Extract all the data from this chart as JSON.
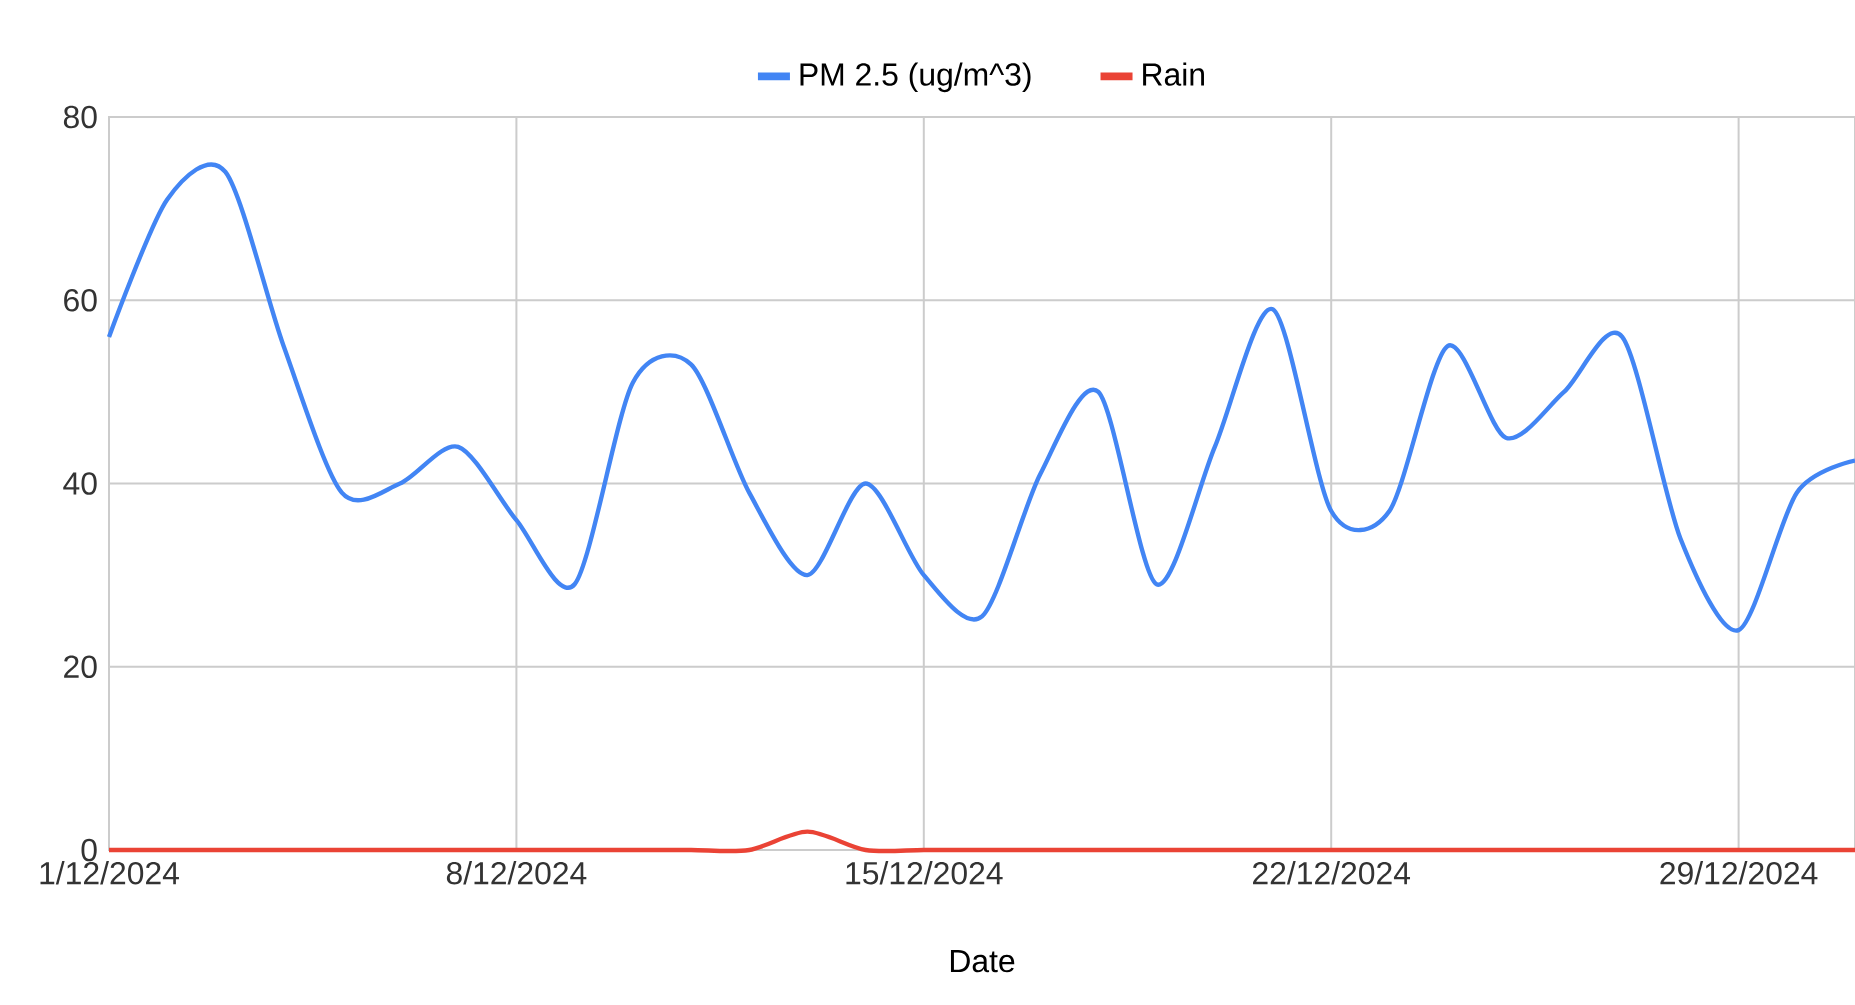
{
  "chart_data": {
    "type": "line",
    "xlabel": "Date",
    "x": [
      "2024-12-01",
      "2024-12-02",
      "2024-12-03",
      "2024-12-04",
      "2024-12-05",
      "2024-12-06",
      "2024-12-07",
      "2024-12-08",
      "2024-12-09",
      "2024-12-10",
      "2024-12-11",
      "2024-12-12",
      "2024-12-13",
      "2024-12-14",
      "2024-12-15",
      "2024-12-16",
      "2024-12-17",
      "2024-12-18",
      "2024-12-19",
      "2024-12-20",
      "2024-12-21",
      "2024-12-22",
      "2024-12-23",
      "2024-12-24",
      "2024-12-25",
      "2024-12-26",
      "2024-12-27",
      "2024-12-28",
      "2024-12-29",
      "2024-12-30",
      "2024-12-31"
    ],
    "series": [
      {
        "name": "PM 2.5 (ug/m^3)",
        "color": "#4285f4",
        "values": [
          56,
          71,
          74,
          55,
          39,
          40,
          44,
          36,
          29,
          51,
          53,
          39,
          30,
          40,
          30,
          25.5,
          41,
          50,
          29,
          44,
          59,
          37,
          37,
          55,
          45,
          50,
          56,
          34,
          24,
          39,
          42.5
        ]
      },
      {
        "name": "Rain",
        "color": "#ea4335",
        "values": [
          0,
          0,
          0,
          0,
          0,
          0,
          0,
          0,
          0,
          0,
          0,
          0,
          2,
          0,
          0,
          0,
          0,
          0,
          0,
          0,
          0,
          0,
          0,
          0,
          0,
          0,
          0,
          0,
          0,
          0,
          0
        ]
      }
    ],
    "xlim": [
      "2024-12-01",
      "2024-12-31"
    ],
    "ylim": [
      0,
      80
    ],
    "xticks": [
      {
        "value": "2024-12-01",
        "label": "1/12/2024"
      },
      {
        "value": "2024-12-08",
        "label": "8/12/2024"
      },
      {
        "value": "2024-12-15",
        "label": "15/12/2024"
      },
      {
        "value": "2024-12-22",
        "label": "22/12/2024"
      },
      {
        "value": "2024-12-29",
        "label": "29/12/2024"
      }
    ],
    "yticks": [
      0,
      20,
      40,
      60,
      80
    ],
    "grid": true,
    "legend": "top"
  }
}
